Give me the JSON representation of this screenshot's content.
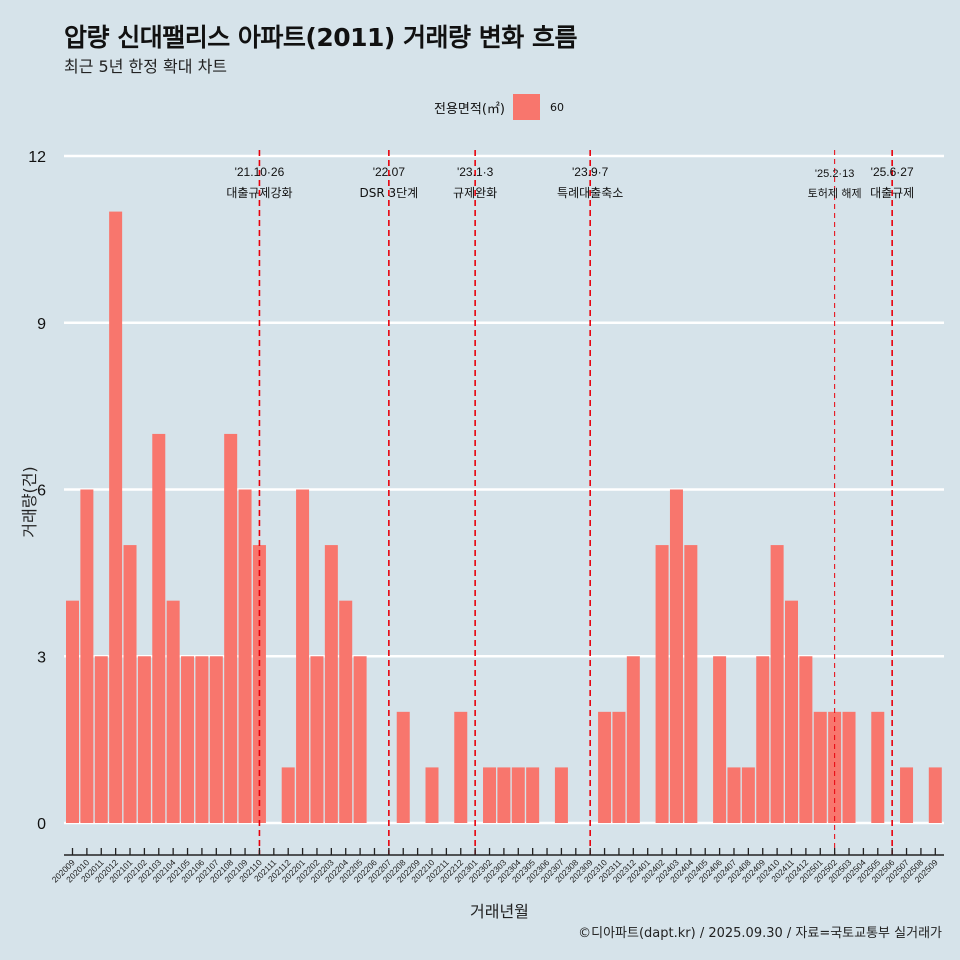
{
  "header": {
    "title": "압량 신대팰리스 아파트(2011) 거래량 변화 흐름",
    "subtitle": "최근 5년 한정 확대 차트"
  },
  "legend": {
    "title": "전용면적(㎡)",
    "items": [
      {
        "label": "60",
        "color": "#f8766d"
      }
    ]
  },
  "footer": "©디아파트(dapt.kr) / 2025.09.30 / 자료=국토교통부 실거래가",
  "colors": {
    "background": "#d6e3ea",
    "bar": "#f8766d",
    "grid": "#ffffff",
    "event_line": "#e8000b",
    "axis": "#222222"
  },
  "chart_data": {
    "type": "bar",
    "title": "압량 신대팰리스 아파트(2011) 거래량 변화 흐름",
    "subtitle": "최근 5년 한정 확대 차트",
    "xlabel": "거래년월",
    "ylabel": "거래량(건)",
    "ylim": [
      0,
      12
    ],
    "yticks": [
      0,
      3,
      6,
      9,
      12
    ],
    "grid": true,
    "legend_position": "top",
    "categories": [
      "202009",
      "202010",
      "202011",
      "202012",
      "202101",
      "202102",
      "202103",
      "202104",
      "202105",
      "202106",
      "202107",
      "202108",
      "202109",
      "202110",
      "202111",
      "202112",
      "202201",
      "202202",
      "202203",
      "202204",
      "202205",
      "202206",
      "202207",
      "202208",
      "202209",
      "202210",
      "202211",
      "202212",
      "202301",
      "202302",
      "202303",
      "202304",
      "202305",
      "202306",
      "202307",
      "202308",
      "202309",
      "202310",
      "202311",
      "202312",
      "202401",
      "202402",
      "202403",
      "202404",
      "202405",
      "202406",
      "202407",
      "202408",
      "202409",
      "202410",
      "202411",
      "202412",
      "202501",
      "202502",
      "202503",
      "202504",
      "202505",
      "202506",
      "202507",
      "202508",
      "202509"
    ],
    "series": [
      {
        "name": "60",
        "values": [
          4,
          6,
          3,
          11,
          5,
          3,
          7,
          4,
          3,
          3,
          3,
          7,
          6,
          5,
          0,
          1,
          6,
          3,
          5,
          4,
          3,
          0,
          0,
          2,
          0,
          1,
          0,
          2,
          0,
          1,
          1,
          1,
          1,
          0,
          1,
          0,
          0,
          2,
          2,
          3,
          0,
          5,
          6,
          5,
          0,
          3,
          1,
          1,
          3,
          5,
          4,
          3,
          2,
          2,
          2,
          0,
          2,
          0,
          1,
          0,
          1
        ]
      }
    ],
    "events": [
      {
        "month": "202110",
        "date": "'21.10·26",
        "label": "대출규제강화",
        "style": "bold"
      },
      {
        "month": "202207",
        "date": "'22.07",
        "label": "DSR 3단계",
        "style": "bold"
      },
      {
        "month": "202301",
        "date": "'23.1·3",
        "label": "규제완화",
        "style": "bold"
      },
      {
        "month": "202309",
        "date": "'23.9·7",
        "label": "특례대출축소",
        "style": "bold"
      },
      {
        "month": "202502",
        "date": "'25.2·13",
        "label": "토허제 해제",
        "style": "thin"
      },
      {
        "month": "202506",
        "date": "'25.6·27",
        "label": "대출규제",
        "style": "bold"
      }
    ]
  }
}
